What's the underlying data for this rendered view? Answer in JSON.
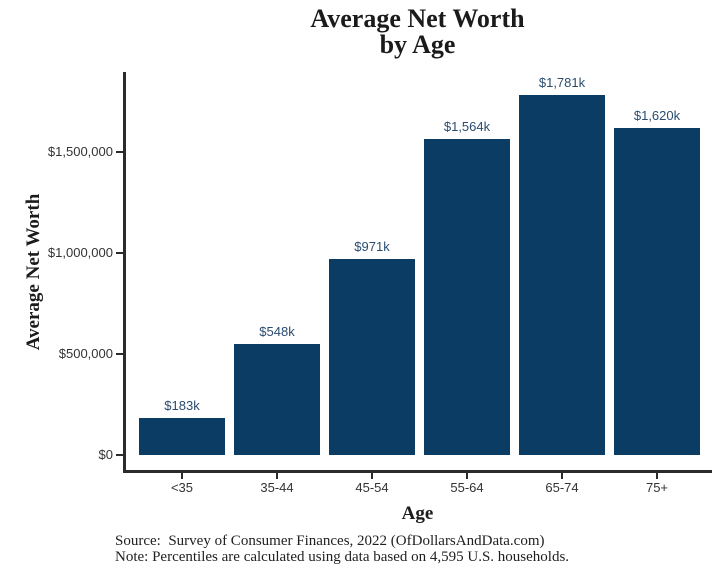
{
  "title": {
    "line1": "Average Net Worth",
    "line2": "by Age"
  },
  "chart_data": {
    "type": "bar",
    "title": "Average Net Worth by Age",
    "xlabel": "Age",
    "ylabel": "Average Net Worth",
    "categories": [
      "<35",
      "35-44",
      "45-54",
      "55-64",
      "65-74",
      "75+"
    ],
    "values": [
      183000,
      548000,
      971000,
      1564000,
      1781000,
      1620000
    ],
    "bar_labels": [
      "$183k",
      "$548k",
      "$971k",
      "$1,564k",
      "$1,781k",
      "$1,620k"
    ],
    "yticks": [
      {
        "value": 0,
        "label": "$0"
      },
      {
        "value": 500000,
        "label": "$500,000"
      },
      {
        "value": 1000000,
        "label": "$1,000,000"
      },
      {
        "value": 1500000,
        "label": "$1,500,000"
      }
    ],
    "ylim": [
      0,
      1900000
    ],
    "grid": false,
    "legend": false,
    "bar_color": "#0a3c64",
    "value_label_color": "#2b4c70",
    "axis_color": "#2b2b2b",
    "tick_label_color": "#333333"
  },
  "footer": {
    "source": "Source:  Survey of Consumer Finances, 2022 (OfDollarsAndData.com)",
    "note": "Note: Percentiles are calculated using data based on 4,595 U.S. households."
  }
}
